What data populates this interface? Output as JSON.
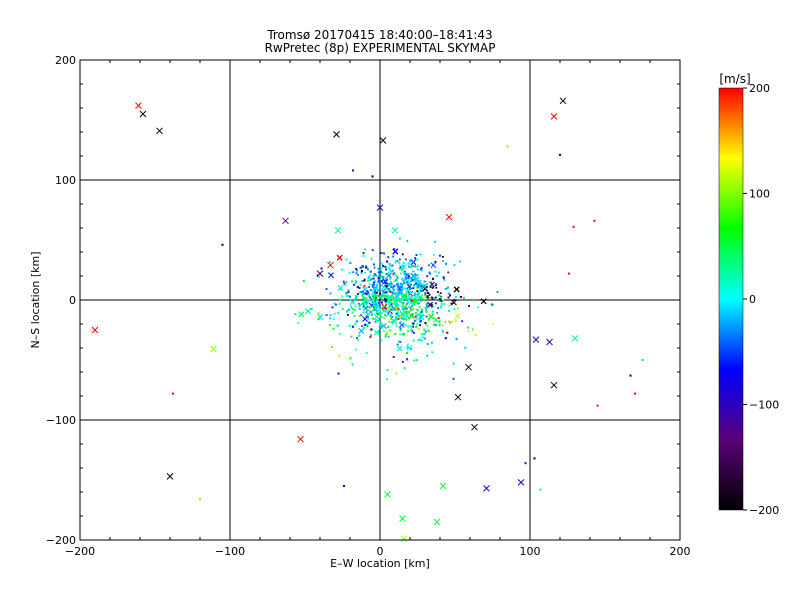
{
  "chart_data": {
    "type": "scatter",
    "title": "Tromsø 20170415 18:40:00–18:41:43",
    "subtitle": "RwPretec (8p) EXPERIMENTAL SKYMAP",
    "xlabel": "E–W location [km]",
    "ylabel": "N–S location [km]",
    "xlim": [
      -200,
      200
    ],
    "ylim": [
      -200,
      200
    ],
    "xticks": [
      "−200",
      "−100",
      "0",
      "100",
      "200"
    ],
    "yticks": [
      "−200",
      "−100",
      "0",
      "100",
      "200"
    ],
    "grid": true,
    "colorbar": {
      "label": "[m/s]",
      "range": [
        -200,
        200
      ],
      "ticks": [
        "200",
        "100",
        "0",
        "−100",
        "−200"
      ],
      "colormap": [
        "#000000",
        "#5a0078",
        "#0000ff",
        "#00ffff",
        "#00ff00",
        "#ffff00",
        "#ff0000"
      ]
    },
    "cluster": {
      "center_x": 10,
      "center_y": 5,
      "spread_x": 30,
      "spread_y": 28,
      "count": 2600,
      "velocity_range": [
        -200,
        200
      ]
    },
    "crosses": [
      {
        "x": -161,
        "y": 162,
        "v": 200
      },
      {
        "x": -158,
        "y": 155,
        "v": -200
      },
      {
        "x": -147,
        "y": 141,
        "v": -200
      },
      {
        "x": -29,
        "y": 138,
        "v": -200
      },
      {
        "x": 2,
        "y": 133,
        "v": -200
      },
      {
        "x": 122,
        "y": 166,
        "v": -200
      },
      {
        "x": 116,
        "y": 153,
        "v": 200
      },
      {
        "x": -63,
        "y": 66,
        "v": -120
      },
      {
        "x": 46,
        "y": 69,
        "v": 200
      },
      {
        "x": -40,
        "y": 22,
        "v": -150
      },
      {
        "x": -33,
        "y": 29,
        "v": 200
      },
      {
        "x": -190,
        "y": -25,
        "v": 200
      },
      {
        "x": -111,
        "y": -41,
        "v": 100
      },
      {
        "x": -140,
        "y": -147,
        "v": -200
      },
      {
        "x": -53,
        "y": -116,
        "v": 200
      },
      {
        "x": 116,
        "y": -71,
        "v": -200
      },
      {
        "x": 130,
        "y": -32,
        "v": 30
      },
      {
        "x": 113,
        "y": -35,
        "v": -100
      },
      {
        "x": 104,
        "y": -33,
        "v": -100
      },
      {
        "x": 63,
        "y": -106,
        "v": -200
      },
      {
        "x": 52,
        "y": -81,
        "v": -200
      },
      {
        "x": 59,
        "y": -56,
        "v": -200
      },
      {
        "x": 71,
        "y": -157,
        "v": -100
      },
      {
        "x": 94,
        "y": -152,
        "v": -100
      },
      {
        "x": 15,
        "y": -182,
        "v": 50
      },
      {
        "x": 38,
        "y": -185,
        "v": 50
      },
      {
        "x": 5,
        "y": -162,
        "v": 50
      },
      {
        "x": 42,
        "y": -155,
        "v": 50
      },
      {
        "x": 16,
        "y": -199,
        "v": 100
      },
      {
        "x": 0,
        "y": 77,
        "v": -120
      },
      {
        "x": 10,
        "y": 58,
        "v": 30
      },
      {
        "x": -28,
        "y": 58,
        "v": 30
      }
    ],
    "sparse_points": [
      {
        "x": -120,
        "y": -166,
        "v": 100
      },
      {
        "x": -105,
        "y": 46,
        "v": -200
      },
      {
        "x": -138,
        "y": -78,
        "v": 200
      },
      {
        "x": 120,
        "y": 121,
        "v": -200
      },
      {
        "x": 167,
        "y": -63,
        "v": -200
      },
      {
        "x": 170,
        "y": -78,
        "v": 200
      },
      {
        "x": 145,
        "y": -88,
        "v": 200
      },
      {
        "x": 126,
        "y": 22,
        "v": 200
      },
      {
        "x": 129,
        "y": 61,
        "v": 200
      },
      {
        "x": 143,
        "y": 66,
        "v": 200
      },
      {
        "x": 85,
        "y": 128,
        "v": 100
      },
      {
        "x": -18,
        "y": 108,
        "v": -100
      },
      {
        "x": -5,
        "y": 103,
        "v": -200
      },
      {
        "x": 97,
        "y": -136,
        "v": -100
      },
      {
        "x": 103,
        "y": -132,
        "v": -200
      },
      {
        "x": 107,
        "y": -158,
        "v": 30
      },
      {
        "x": -24,
        "y": -155,
        "v": -100
      },
      {
        "x": 175,
        "y": -50,
        "v": 50
      }
    ]
  }
}
